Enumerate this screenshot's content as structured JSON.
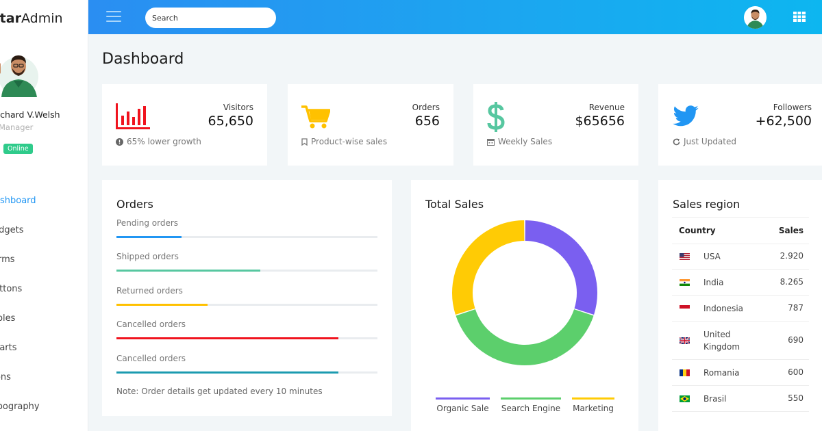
{
  "brand": {
    "bold": "Star",
    "rest": "Admin"
  },
  "profile": {
    "name": "Richard V.Welsh",
    "role": "Manager",
    "status": "Online"
  },
  "nav": [
    {
      "label": "Dashboard",
      "active": true
    },
    {
      "label": "Widgets"
    },
    {
      "label": "Forms"
    },
    {
      "label": "Buttons"
    },
    {
      "label": "Tables"
    },
    {
      "label": "Charts"
    },
    {
      "label": "Icons"
    },
    {
      "label": "Typography"
    }
  ],
  "topbar": {
    "search_placeholder": "Search"
  },
  "page_title": "Dashboard",
  "stats": [
    {
      "label": "Visitors",
      "value": "65,650",
      "foot": "65% lower growth",
      "icon": "bar-chart-icon",
      "color": "#f0131e"
    },
    {
      "label": "Orders",
      "value": "656",
      "foot": "Product-wise sales",
      "icon": "cart-icon",
      "color": "#ffc100"
    },
    {
      "label": "Revenue",
      "value": "$65656",
      "foot": "Weekly Sales",
      "icon": "dollar-icon",
      "color": "#57c7a0"
    },
    {
      "label": "Followers",
      "value": "+62,500",
      "foot": "Just Updated",
      "icon": "twitter-icon",
      "color": "#2196f3"
    }
  ],
  "orders": {
    "title": "Orders",
    "rows": [
      {
        "label": "Pending orders",
        "progress": 0.25,
        "color": "#2196f3"
      },
      {
        "label": "Shipped orders",
        "progress": 0.55,
        "color": "#57c7a0"
      },
      {
        "label": "Returned orders",
        "progress": 0.35,
        "color": "#ffc100"
      },
      {
        "label": "Cancelled orders",
        "progress": 0.85,
        "color": "#f0131e"
      },
      {
        "label": "Cancelled orders",
        "progress": 0.85,
        "color": "#1c9bb0"
      }
    ],
    "note": "Note: Order details get updated every 10 minutes"
  },
  "total_sales": {
    "title": "Total Sales",
    "chart_data": {
      "type": "pie",
      "series": [
        {
          "name": "Organic Sale",
          "value": 30,
          "color": "#7a5ff0"
        },
        {
          "name": "Search Engine",
          "value": 40,
          "color": "#5ccf6c"
        },
        {
          "name": "Marketing",
          "value": 30,
          "color": "#ffcb05"
        }
      ]
    }
  },
  "sales_region": {
    "title": "Sales region",
    "headers": {
      "country": "Country",
      "sales": "Sales"
    },
    "rows": [
      {
        "country": "USA",
        "sales": "2.920",
        "flag": "us-flag-icon"
      },
      {
        "country": "India",
        "sales": "8.265",
        "flag": "india-flag-icon"
      },
      {
        "country": "Indonesia",
        "sales": "787",
        "flag": "indonesia-flag-icon"
      },
      {
        "country": "United Kingdom",
        "sales": "690",
        "flag": "uk-flag-icon"
      },
      {
        "country": "Romania",
        "sales": "600",
        "flag": "romania-flag-icon"
      },
      {
        "country": "Brasil",
        "sales": "550",
        "flag": "brazil-flag-icon"
      }
    ]
  }
}
